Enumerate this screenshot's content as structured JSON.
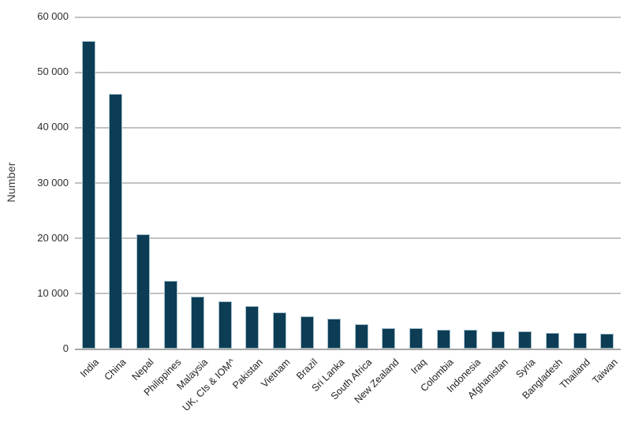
{
  "chart_data": {
    "type": "bar",
    "title": "",
    "xlabel": "",
    "ylabel": "Number",
    "ylim": [
      0,
      60000
    ],
    "ytick_step": 10000,
    "ytick_labels": [
      "0",
      "10 000",
      "20 000",
      "30 000",
      "40 000",
      "50 000",
      "60 000"
    ],
    "grid": "horizontal",
    "legend_position": "none",
    "categories": [
      "India",
      "China",
      "Nepal",
      "Philippines",
      "Malaysia",
      "UK, CIs & IOM^",
      "Pakistan",
      "Vietnam",
      "Brazil",
      "Sri Lanka",
      "South Africa",
      "New Zealand",
      "Iraq",
      "Colombia",
      "Indonesia",
      "Afghanistan",
      "Syria",
      "Bangladesh",
      "Thailand",
      "Taiwan"
    ],
    "values": [
      55600,
      46000,
      20700,
      12200,
      9400,
      8500,
      7700,
      6500,
      5900,
      5400,
      4400,
      3700,
      3650,
      3450,
      3400,
      3150,
      3100,
      2900,
      2850,
      2650
    ],
    "colors": {
      "bar_fill": "#0d3d55",
      "bar_edge": "#a7c1cd",
      "gridline": "#c2c2c2",
      "axis_line": "#9d9d9d",
      "tick_text": "#2e2e2e",
      "category_text": "#1f1f1f"
    }
  }
}
